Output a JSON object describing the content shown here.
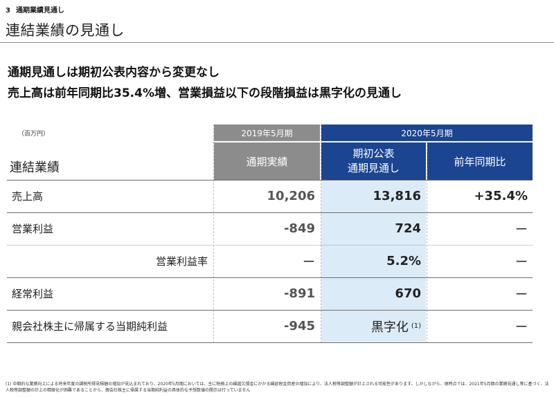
{
  "header": {
    "section_number": "3",
    "section_label": "通期業績見通し",
    "page_title": "連結業績の見通し"
  },
  "headlines": [
    "通期見通しは期初公表内容から変更なし",
    "売上高は前年同期比35.4%増、営業損益以下の段階損益は黒字化の見通し"
  ],
  "table": {
    "unit": "（百万円）",
    "title": "連結業績",
    "period_2019": "2019年5月期",
    "period_2020": "2020年5月期",
    "col_actual": "通期実績",
    "col_forecast_line1": "期初公表",
    "col_forecast_line2": "通期見通し",
    "col_yoy": "前年同期比",
    "rows": [
      {
        "label": "売上高",
        "actual": "10,206",
        "forecast": "13,816",
        "yoy": "+35.4%"
      },
      {
        "label": "営業利益",
        "actual": "-849",
        "forecast": "724",
        "yoy": "ー"
      },
      {
        "label": "営業利益率",
        "actual": "ー",
        "forecast": "5.2%",
        "yoy": "ー"
      },
      {
        "label": "経常利益",
        "actual": "-891",
        "forecast": "670",
        "yoy": "ー"
      },
      {
        "label": "親会社株主に帰属する当期純利益",
        "actual": "-945",
        "forecast": "黒字化",
        "forecast_note": "(1)",
        "yoy": "ー"
      }
    ]
  },
  "footnote": "(1) 中期的な業績向上による将来年度の課税所得見積額の増加が見込まれており、2020年5月期においては、主に税務上の繰越欠損金にかかる繰延税金資産の増加により、法人税等調整額が計上される可能性があります。しかしながら、現時点では、2021年5月期の業績見通し等に基づく、法人税等調整額の計上の精緻化が困難であることから、親会社株主に帰属する当期純利益の具体的な予想数値の開示は行っていません"
}
